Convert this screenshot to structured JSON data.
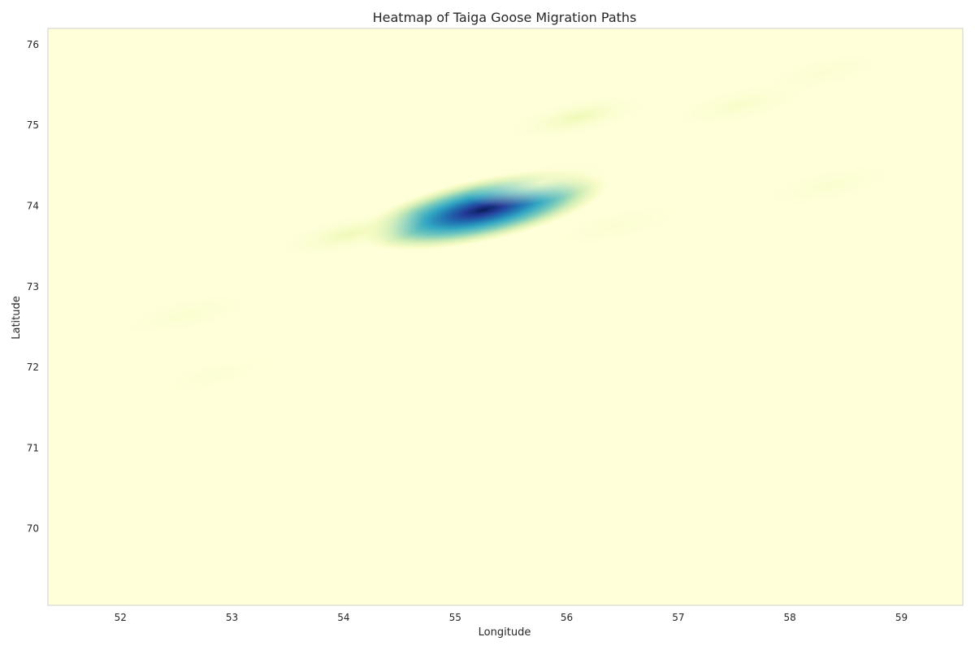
{
  "chart_data": {
    "type": "heatmap",
    "title": "Heatmap of Taiga Goose Migration Paths",
    "xlabel": "Longitude",
    "ylabel": "Latitude",
    "xlim": [
      51.35,
      59.55
    ],
    "ylim": [
      69.05,
      76.2
    ],
    "xticks": [
      52,
      53,
      54,
      55,
      56,
      57,
      58,
      59
    ],
    "yticks": [
      70,
      71,
      72,
      73,
      74,
      75,
      76
    ],
    "grid": false,
    "colormap": [
      "#ffffd9",
      "#edf8b1",
      "#c7e9b4",
      "#7fcdbb",
      "#41b6c4",
      "#1d91c0",
      "#225ea8",
      "#253494",
      "#081d58"
    ],
    "hotspots": [
      {
        "lon": 55.25,
        "lat": 73.95,
        "intensity": 1.0
      },
      {
        "lon": 54.05,
        "lat": 73.65,
        "intensity": 0.12
      },
      {
        "lon": 56.1,
        "lat": 75.1,
        "intensity": 0.12
      },
      {
        "lon": 57.55,
        "lat": 75.25,
        "intensity": 0.06
      },
      {
        "lon": 55.8,
        "lat": 74.3,
        "intensity": 0.05
      },
      {
        "lon": 58.35,
        "lat": 74.25,
        "intensity": 0.04
      },
      {
        "lon": 52.6,
        "lat": 72.65,
        "intensity": 0.04
      },
      {
        "lon": 58.3,
        "lat": 75.65,
        "intensity": 0.03
      },
      {
        "lon": 56.45,
        "lat": 73.75,
        "intensity": 0.03
      },
      {
        "lon": 52.85,
        "lat": 71.9,
        "intensity": 0.02
      }
    ]
  }
}
